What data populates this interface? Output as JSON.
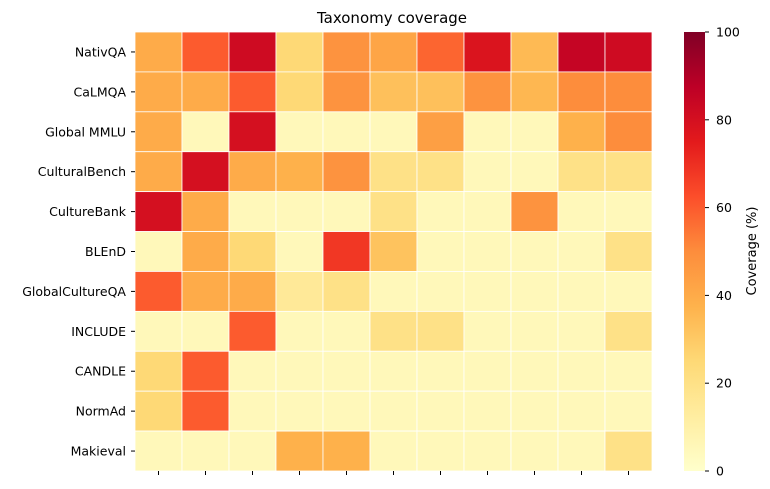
{
  "chart_data": {
    "type": "heatmap",
    "title": "Taxonomy coverage",
    "xlabel": "",
    "ylabel": "",
    "rows": [
      "NativQA",
      "CaLMQA",
      "Global MMLU",
      "CulturalBench",
      "CultureBank",
      "BLEnD",
      "GlobalCultureQA",
      "INCLUDE",
      "CANDLE",
      "NormAd",
      "Makieval"
    ],
    "column_count": 11,
    "values": [
      [
        40,
        60,
        82,
        25,
        48,
        42,
        58,
        78,
        35,
        85,
        82
      ],
      [
        40,
        40,
        60,
        25,
        48,
        33,
        33,
        48,
        36,
        50,
        50
      ],
      [
        40,
        5,
        80,
        5,
        5,
        5,
        44,
        5,
        5,
        38,
        50
      ],
      [
        40,
        80,
        40,
        38,
        48,
        20,
        20,
        5,
        5,
        20,
        20
      ],
      [
        80,
        40,
        5,
        5,
        5,
        20,
        5,
        5,
        48,
        5,
        5
      ],
      [
        5,
        40,
        25,
        5,
        68,
        32,
        5,
        5,
        5,
        5,
        20
      ],
      [
        60,
        40,
        40,
        15,
        20,
        5,
        5,
        5,
        5,
        5,
        5
      ],
      [
        5,
        5,
        60,
        5,
        5,
        20,
        20,
        5,
        5,
        5,
        20
      ],
      [
        25,
        60,
        5,
        5,
        5,
        5,
        5,
        5,
        5,
        5,
        5
      ],
      [
        25,
        60,
        5,
        5,
        5,
        5,
        5,
        5,
        5,
        5,
        5
      ],
      [
        5,
        5,
        5,
        38,
        38,
        5,
        5,
        5,
        5,
        5,
        20
      ]
    ],
    "colorbar": {
      "label": "Coverage (%)",
      "range": [
        0,
        100
      ],
      "ticks": [
        0,
        20,
        40,
        60,
        80,
        100
      ],
      "colormap": "YlOrRd"
    },
    "grid": true
  }
}
